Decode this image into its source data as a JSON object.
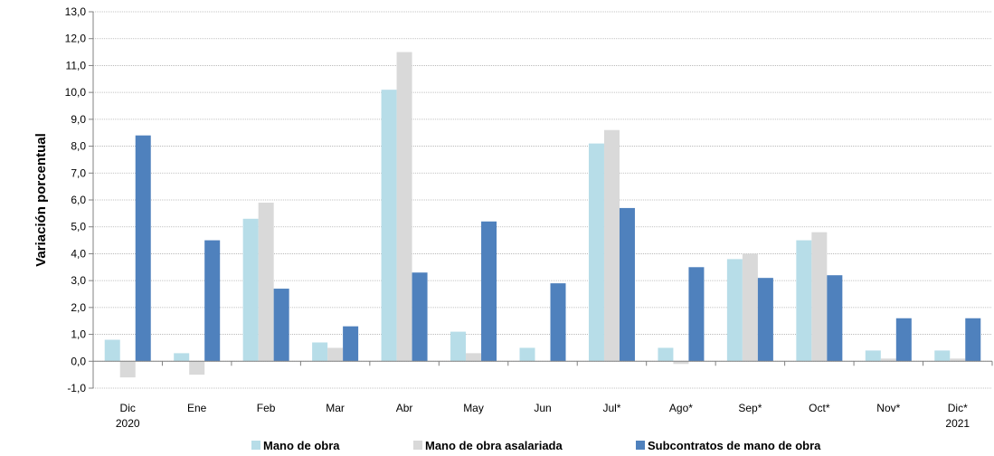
{
  "chart_data": {
    "type": "bar",
    "ylabel": "Variación porcentual",
    "ylim": [
      -1.0,
      13.0
    ],
    "ytick_step": 1.0,
    "ytick_labels": [
      "-1,0",
      "0,0",
      "1,0",
      "2,0",
      "3,0",
      "4,0",
      "5,0",
      "6,0",
      "7,0",
      "8,0",
      "9,0",
      "10,0",
      "11,0",
      "12,0",
      "13,0"
    ],
    "categories": [
      "Dic",
      "Ene",
      "Feb",
      "Mar",
      "Abr",
      "May",
      "Jun",
      "Jul*",
      "Ago*",
      "Sep*",
      "Oct*",
      "Nov*",
      "Dic*"
    ],
    "year_labels": [
      "2020",
      "",
      "",
      "",
      "",
      "",
      "",
      "",
      "",
      "",
      "",
      "",
      "2021"
    ],
    "grid": true,
    "legend_position": "bottom",
    "series": [
      {
        "name": "Mano de obra",
        "color": "#b7dde8",
        "values": [
          0.8,
          0.3,
          5.3,
          0.7,
          10.1,
          1.1,
          0.5,
          8.1,
          0.5,
          3.8,
          4.5,
          0.4,
          0.4
        ]
      },
      {
        "name": "Mano de obra asalariada",
        "color": "#d9d9d9",
        "values": [
          -0.6,
          -0.5,
          5.9,
          0.5,
          11.5,
          0.3,
          0.0,
          8.6,
          -0.1,
          4.0,
          4.8,
          0.1,
          0.1
        ]
      },
      {
        "name": "Subcontratos de mano de obra",
        "color": "#4f81bd",
        "values": [
          8.4,
          4.5,
          2.7,
          1.3,
          3.3,
          5.2,
          2.9,
          5.7,
          3.5,
          3.1,
          3.2,
          1.6,
          1.6
        ]
      }
    ]
  }
}
